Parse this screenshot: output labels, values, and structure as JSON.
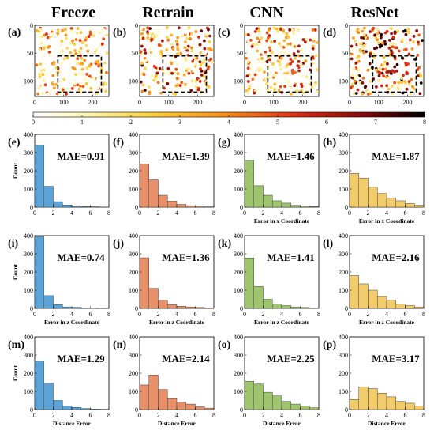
{
  "columns": [
    "Freeze",
    "Retrain",
    "CNN",
    "ResNet"
  ],
  "colors": {
    "Freeze": "#5ba3d6",
    "Retrain": "#e8906a",
    "CNN": "#9ec46e",
    "ResNet": "#f2cc6a",
    "dashed_box": "#000000"
  },
  "colormap": {
    "name": "hot-reversed",
    "min": 0,
    "max": 8,
    "ticks": [
      "0",
      "1",
      "2",
      "3",
      "4",
      "5",
      "6",
      "7",
      "8"
    ]
  },
  "panel_letters": [
    "(a)",
    "(b)",
    "(c)",
    "(d)",
    "(e)",
    "(f)",
    "(g)",
    "(h)",
    "(i)",
    "(j)",
    "(k)",
    "(l)",
    "(m)",
    "(n)",
    "(o)",
    "(p)"
  ],
  "chart_data": [
    {
      "type": "scatter",
      "description_hint": "error maps colored by error magnitude",
      "panels": [
        "(a)",
        "(b)",
        "(c)",
        "(d)"
      ],
      "columns": [
        "Freeze",
        "Retrain",
        "CNN",
        "ResNet"
      ],
      "x_ticks": [
        "0",
        "100",
        "200"
      ],
      "y_ticks": [
        "0",
        "50",
        "100"
      ],
      "xlim": [
        0,
        256
      ],
      "ylim": [
        0,
        128
      ],
      "y_inverted": true,
      "dashed_box": {
        "x": [
          80,
          230
        ],
        "y": [
          55,
          120
        ]
      },
      "color_scale": [
        0,
        8
      ]
    },
    {
      "type": "bar",
      "panel": "(e)",
      "series": "Freeze",
      "bin_edges": [
        0,
        1,
        2,
        3,
        4,
        5,
        6,
        7,
        8
      ],
      "values": [
        340,
        115,
        30,
        12,
        5,
        3,
        2,
        1
      ],
      "annotation": "MAE=0.91",
      "xlabel": "",
      "ylabel": "Count",
      "ylim": [
        0,
        400
      ],
      "yticks": [
        "0",
        "100",
        "200",
        "300",
        "400"
      ],
      "xticks": [
        "0",
        "2",
        "4",
        "6",
        "8"
      ]
    },
    {
      "type": "bar",
      "panel": "(f)",
      "series": "Retrain",
      "bin_edges": [
        0,
        1,
        2,
        3,
        4,
        5,
        6,
        7,
        8
      ],
      "values": [
        237,
        150,
        65,
        33,
        15,
        8,
        5,
        2
      ],
      "annotation": "MAE=1.39",
      "xlabel": "",
      "ylabel": "",
      "ylim": [
        0,
        400
      ],
      "yticks": [
        "0",
        "100",
        "200",
        "300",
        "400"
      ],
      "xticks": [
        "0",
        "2",
        "4",
        "6",
        "8"
      ]
    },
    {
      "type": "bar",
      "panel": "(g)",
      "series": "CNN",
      "bin_edges": [
        0,
        1,
        2,
        3,
        4,
        5,
        6,
        7,
        8
      ],
      "values": [
        257,
        118,
        65,
        35,
        22,
        10,
        5,
        3
      ],
      "annotation": "MAE=1.46",
      "xlabel": "Error in x Coordinate",
      "ylabel": "",
      "ylim": [
        0,
        400
      ],
      "yticks": [
        "0",
        "100",
        "200",
        "300",
        "400"
      ],
      "xticks": [
        "0",
        "2",
        "4",
        "6",
        "8"
      ]
    },
    {
      "type": "bar",
      "panel": "(h)",
      "series": "ResNet",
      "bin_edges": [
        0,
        1,
        2,
        3,
        4,
        5,
        6,
        7,
        8
      ],
      "values": [
        185,
        160,
        110,
        75,
        50,
        35,
        20,
        10
      ],
      "annotation": "MAE=1.87",
      "xlabel": "Error in x Coordinate",
      "ylabel": "",
      "ylim": [
        0,
        400
      ],
      "yticks": [
        "0",
        "100",
        "200",
        "300",
        "400"
      ],
      "xticks": [
        "0",
        "2",
        "4",
        "6",
        "8"
      ]
    },
    {
      "type": "bar",
      "panel": "(i)",
      "series": "Freeze",
      "bin_edges": [
        0,
        1,
        2,
        3,
        4,
        5,
        6,
        7,
        8
      ],
      "values": [
        395,
        70,
        20,
        8,
        6,
        3,
        2,
        1
      ],
      "annotation": "MAE=0.74",
      "xlabel": "Error in z Coordinate",
      "ylabel": "Count",
      "ylim": [
        0,
        400
      ],
      "yticks": [
        "0",
        "100",
        "200",
        "300",
        "400"
      ],
      "xticks": [
        "0",
        "2",
        "4",
        "6",
        "8"
      ]
    },
    {
      "type": "bar",
      "panel": "(j)",
      "series": "Retrain",
      "bin_edges": [
        0,
        1,
        2,
        3,
        4,
        5,
        6,
        7,
        8
      ],
      "values": [
        278,
        110,
        45,
        20,
        12,
        8,
        5,
        3
      ],
      "annotation": "MAE=1.36",
      "xlabel": "Error in z Coordinate",
      "ylabel": "",
      "ylim": [
        0,
        400
      ],
      "yticks": [
        "0",
        "100",
        "200",
        "300",
        "400"
      ],
      "xticks": [
        "0",
        "2",
        "4",
        "6",
        "8"
      ]
    },
    {
      "type": "bar",
      "panel": "(k)",
      "series": "CNN",
      "bin_edges": [
        0,
        1,
        2,
        3,
        4,
        5,
        6,
        7,
        8
      ],
      "values": [
        277,
        120,
        50,
        25,
        15,
        8,
        5,
        3
      ],
      "annotation": "MAE=1.41",
      "xlabel": "Error in z Coordinate",
      "ylabel": "",
      "ylim": [
        0,
        400
      ],
      "yticks": [
        "0",
        "100",
        "200",
        "300",
        "400"
      ],
      "xticks": [
        "0",
        "2",
        "4",
        "6",
        "8"
      ]
    },
    {
      "type": "bar",
      "panel": "(l)",
      "series": "ResNet",
      "bin_edges": [
        0,
        1,
        2,
        3,
        4,
        5,
        6,
        7,
        8
      ],
      "values": [
        180,
        135,
        100,
        65,
        45,
        25,
        15,
        8
      ],
      "annotation": "MAE=2.16",
      "xlabel": "Error in z Coordinate",
      "ylabel": "",
      "ylim": [
        0,
        400
      ],
      "yticks": [
        "0",
        "100",
        "200",
        "300",
        "400"
      ],
      "xticks": [
        "0",
        "2",
        "4",
        "6",
        "8"
      ]
    },
    {
      "type": "bar",
      "panel": "(m)",
      "series": "Freeze",
      "bin_edges": [
        0,
        1,
        2,
        3,
        4,
        5,
        6,
        7,
        8
      ],
      "values": [
        268,
        145,
        50,
        20,
        12,
        6,
        3,
        2
      ],
      "annotation": "MAE=1.29",
      "xlabel": "Distance Error",
      "ylabel": "Count",
      "ylim": [
        0,
        400
      ],
      "yticks": [
        "0",
        "100",
        "200",
        "300",
        "400"
      ],
      "xticks": [
        "0",
        "2",
        "4",
        "6",
        "8"
      ]
    },
    {
      "type": "bar",
      "panel": "(n)",
      "series": "Retrain",
      "bin_edges": [
        0,
        1,
        2,
        3,
        4,
        5,
        6,
        7,
        8
      ],
      "values": [
        135,
        190,
        110,
        60,
        40,
        30,
        15,
        8
      ],
      "annotation": "MAE=2.14",
      "xlabel": "Distance Error",
      "ylabel": "",
      "ylim": [
        0,
        400
      ],
      "yticks": [
        "0",
        "100",
        "200",
        "300",
        "400"
      ],
      "xticks": [
        "0",
        "2",
        "4",
        "6",
        "8"
      ]
    },
    {
      "type": "bar",
      "panel": "(o)",
      "series": "CNN",
      "bin_edges": [
        0,
        1,
        2,
        3,
        4,
        5,
        6,
        7,
        8
      ],
      "values": [
        155,
        140,
        95,
        75,
        45,
        30,
        20,
        10
      ],
      "annotation": "MAE=2.25",
      "xlabel": "Distance Error",
      "ylabel": "",
      "ylim": [
        0,
        400
      ],
      "yticks": [
        "0",
        "100",
        "200",
        "300",
        "400"
      ],
      "xticks": [
        "0",
        "2",
        "4",
        "6",
        "8"
      ]
    },
    {
      "type": "bar",
      "panel": "(p)",
      "series": "ResNet",
      "bin_edges": [
        0,
        1,
        2,
        3,
        4,
        5,
        6,
        7,
        8
      ],
      "values": [
        55,
        125,
        115,
        90,
        70,
        45,
        35,
        20
      ],
      "annotation": "MAE=3.17",
      "xlabel": "Distance Error",
      "ylabel": "",
      "ylim": [
        0,
        400
      ],
      "yticks": [
        "0",
        "100",
        "200",
        "300",
        "400"
      ],
      "xticks": [
        "0",
        "2",
        "4",
        "6",
        "8"
      ]
    }
  ]
}
